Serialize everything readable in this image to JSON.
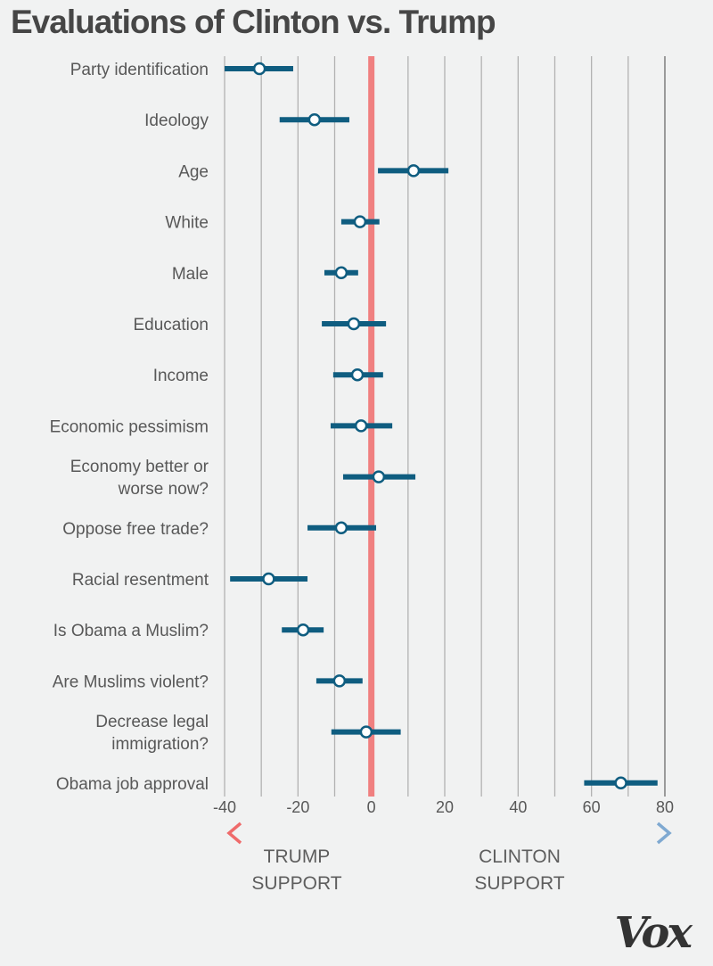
{
  "chart_data": {
    "type": "scatter",
    "subtype": "dot-and-interval",
    "title": "Evaluations of Clinton vs. Trump",
    "xlabel": "",
    "ylabel": "",
    "xlim": [
      -40,
      80
    ],
    "xticks": [
      -40,
      -20,
      0,
      20,
      40,
      60,
      80
    ],
    "gridline_step": 10,
    "grid": true,
    "zero_line_color": "#f08080",
    "series_color": "#0f5d80",
    "categories": [
      {
        "label": [
          "Party identification"
        ],
        "value": -30.5,
        "low": -40,
        "high": -21.3
      },
      {
        "label": [
          "Ideology"
        ],
        "value": -15.5,
        "low": -25,
        "high": -6
      },
      {
        "label": [
          "Age"
        ],
        "value": 11.5,
        "low": 1.8,
        "high": 21
      },
      {
        "label": [
          "White"
        ],
        "value": -3.1,
        "low": -8.2,
        "high": 2.2
      },
      {
        "label": [
          "Male"
        ],
        "value": -8.2,
        "low": -12.8,
        "high": -3.6
      },
      {
        "label": [
          "Education"
        ],
        "value": -4.8,
        "low": -13.5,
        "high": 4
      },
      {
        "label": [
          "Income"
        ],
        "value": -3.8,
        "low": -10.4,
        "high": 3.2
      },
      {
        "label": [
          "Economic pessimism"
        ],
        "value": -2.8,
        "low": -11.1,
        "high": 5.7
      },
      {
        "label": [
          "Economy better or",
          "worse now?"
        ],
        "value": 2,
        "low": -7.7,
        "high": 12
      },
      {
        "label": [
          "Oppose free trade?"
        ],
        "value": -8.2,
        "low": -17.4,
        "high": 1.3
      },
      {
        "label": [
          "Racial resentment"
        ],
        "value": -28,
        "low": -38.5,
        "high": -17.4
      },
      {
        "label": [
          "Is Obama a Muslim?"
        ],
        "value": -18.6,
        "low": -24.4,
        "high": -13
      },
      {
        "label": [
          "Are Muslims violent?"
        ],
        "value": -8.7,
        "low": -15,
        "high": -2.4
      },
      {
        "label": [
          "Decrease legal",
          "immigration?"
        ],
        "value": -1.4,
        "low": -10.9,
        "high": 8
      },
      {
        "label": [
          "Obama job approval"
        ],
        "value": 68,
        "low": 58,
        "high": 78
      }
    ],
    "annotations": {
      "left": {
        "lines": [
          "TRUMP",
          "SUPPORT"
        ],
        "color": "#ef6b6b",
        "direction": "left"
      },
      "right": {
        "lines": [
          "CLINTON",
          "SUPPORT"
        ],
        "color": "#7fa9d1",
        "direction": "right"
      }
    }
  },
  "branding": {
    "logo": "Vox"
  }
}
